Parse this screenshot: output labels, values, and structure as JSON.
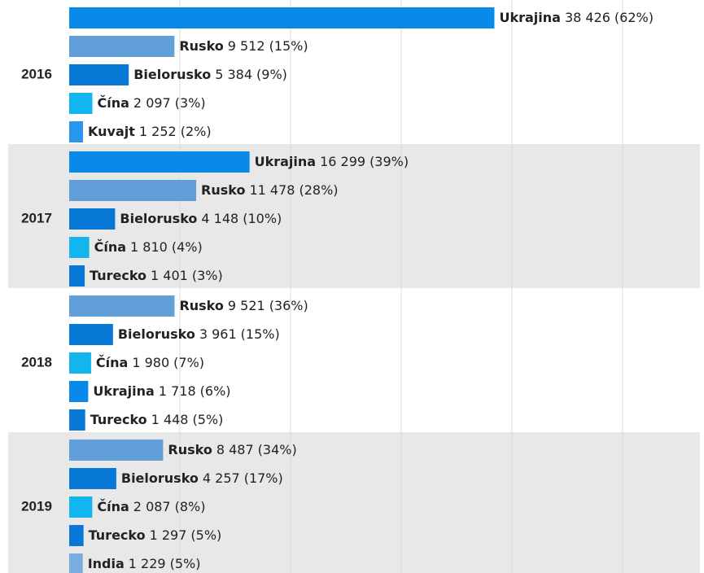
{
  "chart_data": {
    "type": "bar",
    "orientation": "horizontal",
    "xlim": [
      0,
      57000
    ],
    "xticks": [
      0,
      10000,
      20000,
      30000,
      40000,
      50000
    ],
    "grid": true,
    "groups": [
      {
        "label": "2016",
        "categories": [
          "Ukrajina",
          "Rusko",
          "Bielorusko",
          "Čína",
          "Kuvajt"
        ],
        "values": [
          38426,
          9512,
          5384,
          2097,
          1252
        ],
        "value_labels": [
          "38 426",
          "9 512",
          "5 384",
          "2 097",
          "1 252"
        ],
        "shares": [
          62,
          15,
          9,
          3,
          2
        ],
        "share_labels": [
          "(62%)",
          "(15%)",
          "(9%)",
          "(3%)",
          "(2%)"
        ],
        "colors": [
          "#0a8ae8",
          "#629fd8",
          "#0778d6",
          "#12b6ef",
          "#2a96f0"
        ]
      },
      {
        "label": "2017",
        "categories": [
          "Ukrajina",
          "Rusko",
          "Bielorusko",
          "Čína",
          "Turecko"
        ],
        "values": [
          16299,
          11478,
          4148,
          1810,
          1401
        ],
        "value_labels": [
          "16 299",
          "11 478",
          "4 148",
          "1 810",
          "1 401"
        ],
        "shares": [
          39,
          28,
          10,
          4,
          3
        ],
        "share_labels": [
          "(39%)",
          "(28%)",
          "(10%)",
          "(4%)",
          "(3%)"
        ],
        "colors": [
          "#0a8ae8",
          "#629fd8",
          "#0778d6",
          "#12b6ef",
          "#0a78d8"
        ]
      },
      {
        "label": "2018",
        "categories": [
          "Rusko",
          "Bielorusko",
          "Čína",
          "Ukrajina",
          "Turecko"
        ],
        "values": [
          9521,
          3961,
          1980,
          1718,
          1448
        ],
        "value_labels": [
          "9 521",
          "3 961",
          "1 980",
          "1 718",
          "1 448"
        ],
        "shares": [
          36,
          15,
          7,
          6,
          5
        ],
        "share_labels": [
          "(36%)",
          "(15%)",
          "(7%)",
          "(6%)",
          "(5%)"
        ],
        "colors": [
          "#629fd8",
          "#0778d6",
          "#12b6ef",
          "#0a8ae8",
          "#0a78d8"
        ]
      },
      {
        "label": "2019",
        "categories": [
          "Rusko",
          "Bielorusko",
          "Čína",
          "Turecko",
          "India"
        ],
        "values": [
          8487,
          4257,
          2087,
          1297,
          1229
        ],
        "value_labels": [
          "8 487",
          "4 257",
          "2 087",
          "1 297",
          "1 229"
        ],
        "shares": [
          34,
          17,
          8,
          5,
          5
        ],
        "share_labels": [
          "(34%)",
          "(17%)",
          "(8%)",
          "(5%)",
          "(5%)"
        ],
        "colors": [
          "#629fd8",
          "#0778d6",
          "#12b6ef",
          "#0a78d8",
          "#7aaee0"
        ]
      }
    ]
  }
}
